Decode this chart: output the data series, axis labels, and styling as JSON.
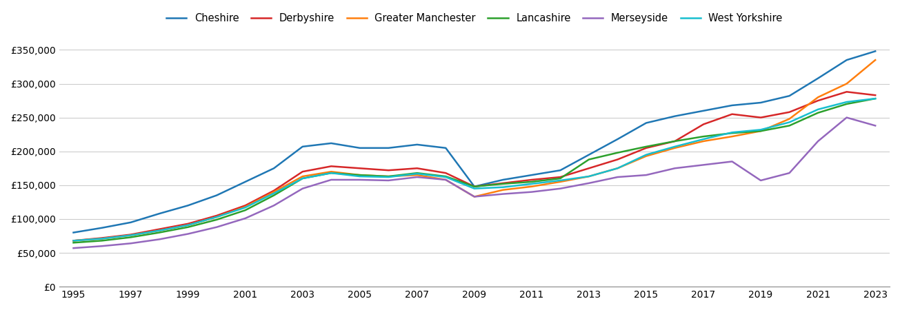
{
  "years": [
    1995,
    1996,
    1997,
    1998,
    1999,
    2000,
    2001,
    2002,
    2003,
    2004,
    2005,
    2006,
    2007,
    2008,
    2009,
    2010,
    2011,
    2012,
    2013,
    2014,
    2015,
    2016,
    2017,
    2018,
    2019,
    2020,
    2021,
    2022,
    2023
  ],
  "Cheshire": [
    80000,
    87000,
    95000,
    108000,
    120000,
    135000,
    155000,
    175000,
    207000,
    212000,
    205000,
    205000,
    210000,
    205000,
    148000,
    158000,
    165000,
    172000,
    195000,
    218000,
    242000,
    252000,
    260000,
    268000,
    272000,
    282000,
    308000,
    335000,
    348000
  ],
  "Derbyshire": [
    68000,
    72000,
    77000,
    85000,
    93000,
    105000,
    120000,
    142000,
    170000,
    178000,
    175000,
    172000,
    175000,
    168000,
    148000,
    153000,
    158000,
    162000,
    175000,
    188000,
    205000,
    215000,
    240000,
    255000,
    250000,
    258000,
    275000,
    288000,
    283000
  ],
  "Greater Manchester": [
    68000,
    71000,
    76000,
    83000,
    91000,
    103000,
    118000,
    140000,
    163000,
    170000,
    165000,
    163000,
    165000,
    158000,
    133000,
    143000,
    148000,
    155000,
    163000,
    175000,
    193000,
    205000,
    215000,
    222000,
    230000,
    248000,
    280000,
    300000,
    335000
  ],
  "Lancashire": [
    65000,
    68000,
    73000,
    80000,
    88000,
    99000,
    113000,
    135000,
    160000,
    168000,
    165000,
    163000,
    168000,
    163000,
    148000,
    152000,
    155000,
    160000,
    188000,
    198000,
    207000,
    215000,
    222000,
    227000,
    230000,
    238000,
    257000,
    270000,
    278000
  ],
  "Merseyside": [
    57000,
    60000,
    64000,
    70000,
    78000,
    88000,
    101000,
    120000,
    145000,
    158000,
    158000,
    157000,
    162000,
    158000,
    133000,
    137000,
    140000,
    145000,
    153000,
    162000,
    165000,
    175000,
    180000,
    185000,
    157000,
    168000,
    215000,
    250000,
    238000
  ],
  "West Yorkshire": [
    68000,
    71000,
    76000,
    83000,
    91000,
    103000,
    117000,
    138000,
    160000,
    168000,
    163000,
    162000,
    167000,
    162000,
    145000,
    147000,
    152000,
    157000,
    163000,
    175000,
    195000,
    207000,
    218000,
    228000,
    232000,
    243000,
    262000,
    273000,
    278000
  ],
  "colors": {
    "Cheshire": "#1f77b4",
    "Derbyshire": "#d62728",
    "Greater Manchester": "#ff7f0e",
    "Lancashire": "#2ca02c",
    "Merseyside": "#9467bd",
    "West Yorkshire": "#17becf"
  },
  "ylim": [
    0,
    370000
  ],
  "yticks": [
    0,
    50000,
    100000,
    150000,
    200000,
    250000,
    300000,
    350000
  ],
  "xticks": [
    1995,
    1997,
    1999,
    2001,
    2003,
    2005,
    2007,
    2009,
    2011,
    2013,
    2015,
    2017,
    2019,
    2021,
    2023
  ],
  "background_color": "#ffffff",
  "grid_color": "#cccccc",
  "line_width": 1.8
}
